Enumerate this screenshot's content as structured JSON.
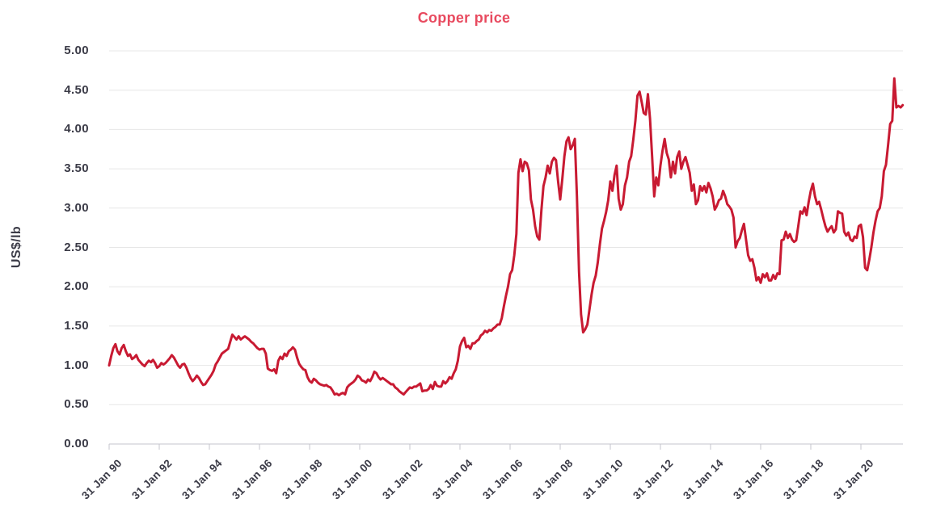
{
  "chart": {
    "title": "Copper price",
    "y_axis_title": "US$/lb",
    "colors": {
      "title": "#e84a5f",
      "line": "#c81a32",
      "axis_labels": "#3b3b47",
      "gridline": "#e7e7e7",
      "axis_line": "#c6c6cc"
    }
  },
  "chart_data": {
    "type": "line",
    "title": "Copper price",
    "xlabel": "",
    "ylabel": "US$/lb",
    "ylim": [
      0,
      5
    ],
    "grid": "horizontal",
    "legend": "none",
    "y_tick_labels": [
      "0.00",
      "0.50",
      "1.00",
      "1.50",
      "2.00",
      "2.50",
      "3.00",
      "3.50",
      "4.00",
      "4.50",
      "5.00"
    ],
    "x_tick_labels": [
      "31 Jan 90",
      "31 Jan 92",
      "31 Jan 94",
      "31 Jan 96",
      "31 Jan 98",
      "31 Jan 00",
      "31 Jan 02",
      "31 Jan 04",
      "31 Jan 06",
      "31 Jan 08",
      "31 Jan 10",
      "31 Jan 12",
      "31 Jan 14",
      "31 Jan 16",
      "31 Jan 18",
      "31 Jan 20"
    ],
    "x_start": "Jan 1990",
    "x_end": "Sep 2021",
    "x_frequency": "monthly",
    "series": [
      {
        "name": "Copper price (US$/lb)",
        "values": [
          1.0,
          1.12,
          1.22,
          1.27,
          1.18,
          1.14,
          1.22,
          1.26,
          1.18,
          1.12,
          1.14,
          1.08,
          1.1,
          1.13,
          1.07,
          1.04,
          1.01,
          0.99,
          1.03,
          1.06,
          1.04,
          1.07,
          1.03,
          0.97,
          0.99,
          1.03,
          1.01,
          1.03,
          1.06,
          1.09,
          1.13,
          1.1,
          1.05,
          1.0,
          0.97,
          1.01,
          1.02,
          0.97,
          0.9,
          0.84,
          0.8,
          0.83,
          0.87,
          0.84,
          0.79,
          0.75,
          0.76,
          0.8,
          0.84,
          0.88,
          0.93,
          1.01,
          1.05,
          1.1,
          1.15,
          1.17,
          1.19,
          1.21,
          1.3,
          1.39,
          1.36,
          1.33,
          1.37,
          1.33,
          1.35,
          1.37,
          1.35,
          1.33,
          1.3,
          1.28,
          1.25,
          1.22,
          1.2,
          1.21,
          1.21,
          1.15,
          0.96,
          0.94,
          0.93,
          0.95,
          0.9,
          1.06,
          1.11,
          1.08,
          1.15,
          1.12,
          1.18,
          1.2,
          1.23,
          1.2,
          1.1,
          1.02,
          0.98,
          0.95,
          0.94,
          0.85,
          0.8,
          0.78,
          0.83,
          0.81,
          0.78,
          0.76,
          0.75,
          0.74,
          0.75,
          0.73,
          0.72,
          0.68,
          0.63,
          0.64,
          0.62,
          0.64,
          0.65,
          0.63,
          0.72,
          0.75,
          0.77,
          0.79,
          0.82,
          0.87,
          0.85,
          0.81,
          0.8,
          0.78,
          0.82,
          0.8,
          0.85,
          0.92,
          0.9,
          0.85,
          0.82,
          0.84,
          0.82,
          0.8,
          0.78,
          0.76,
          0.76,
          0.72,
          0.7,
          0.67,
          0.65,
          0.63,
          0.66,
          0.69,
          0.72,
          0.71,
          0.73,
          0.73,
          0.75,
          0.77,
          0.67,
          0.68,
          0.68,
          0.7,
          0.75,
          0.7,
          0.79,
          0.74,
          0.73,
          0.73,
          0.8,
          0.77,
          0.8,
          0.85,
          0.83,
          0.9,
          0.95,
          1.06,
          1.24,
          1.31,
          1.35,
          1.23,
          1.25,
          1.21,
          1.28,
          1.28,
          1.31,
          1.33,
          1.38,
          1.4,
          1.44,
          1.42,
          1.45,
          1.44,
          1.47,
          1.49,
          1.52,
          1.52,
          1.6,
          1.75,
          1.88,
          2.0,
          2.16,
          2.21,
          2.4,
          2.67,
          3.45,
          3.62,
          3.47,
          3.59,
          3.57,
          3.48,
          3.11,
          2.98,
          2.77,
          2.64,
          2.6,
          2.98,
          3.28,
          3.39,
          3.54,
          3.44,
          3.59,
          3.64,
          3.61,
          3.34,
          3.11,
          3.37,
          3.66,
          3.85,
          3.9,
          3.75,
          3.8,
          3.88,
          3.15,
          2.19,
          1.65,
          1.42,
          1.46,
          1.52,
          1.71,
          1.9,
          2.05,
          2.14,
          2.31,
          2.54,
          2.74,
          2.84,
          2.95,
          3.1,
          3.34,
          3.22,
          3.42,
          3.54,
          3.12,
          2.98,
          3.05,
          3.29,
          3.39,
          3.59,
          3.66,
          3.87,
          4.11,
          4.43,
          4.48,
          4.35,
          4.21,
          4.19,
          4.45,
          4.14,
          3.66,
          3.15,
          3.39,
          3.29,
          3.54,
          3.73,
          3.88,
          3.7,
          3.62,
          3.39,
          3.59,
          3.44,
          3.65,
          3.72,
          3.5,
          3.59,
          3.65,
          3.55,
          3.45,
          3.22,
          3.3,
          3.05,
          3.1,
          3.28,
          3.22,
          3.28,
          3.2,
          3.32,
          3.25,
          3.15,
          2.98,
          3.03,
          3.1,
          3.12,
          3.22,
          3.15,
          3.05,
          3.02,
          2.98,
          2.88,
          2.5,
          2.58,
          2.62,
          2.72,
          2.8,
          2.6,
          2.4,
          2.33,
          2.35,
          2.24,
          2.08,
          2.12,
          2.05,
          2.16,
          2.12,
          2.17,
          2.08,
          2.08,
          2.15,
          2.1,
          2.17,
          2.16,
          2.59,
          2.6,
          2.7,
          2.62,
          2.67,
          2.6,
          2.57,
          2.59,
          2.77,
          2.96,
          2.93,
          3.01,
          2.91,
          3.08,
          3.22,
          3.31,
          3.15,
          3.05,
          3.08,
          2.98,
          2.87,
          2.77,
          2.7,
          2.74,
          2.77,
          2.69,
          2.73,
          2.96,
          2.94,
          2.93,
          2.7,
          2.65,
          2.69,
          2.6,
          2.58,
          2.64,
          2.62,
          2.77,
          2.79,
          2.63,
          2.24,
          2.21,
          2.34,
          2.5,
          2.69,
          2.84,
          2.96,
          3.0,
          3.15,
          3.47,
          3.55,
          3.8,
          4.07,
          4.11,
          4.65,
          4.28,
          4.3,
          4.28,
          4.31
        ]
      }
    ]
  }
}
